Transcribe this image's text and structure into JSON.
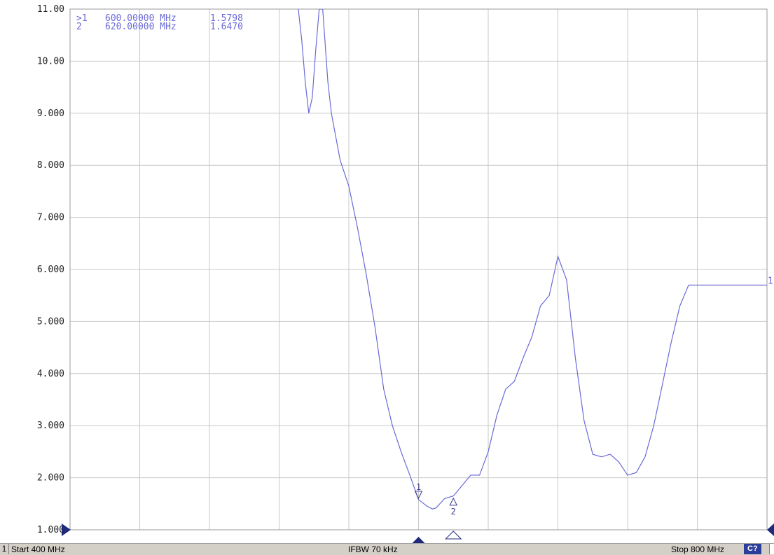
{
  "chart_data": {
    "type": "line",
    "trace_color": "#6a6ad8",
    "grid_color": "#c8c8c8",
    "x_unit": "MHz",
    "xlim": [
      400,
      800
    ],
    "ylim": [
      1.0,
      11.0
    ],
    "y_ticks": [
      "11.00",
      "10.00",
      "9.000",
      "8.000",
      "7.000",
      "6.000",
      "5.000",
      "4.000",
      "3.000",
      "2.000",
      "1.000"
    ],
    "grid": true,
    "series": [
      {
        "trace_number": "1",
        "x": [
          531,
          533,
          535,
          537,
          539,
          541,
          543,
          545,
          548,
          550,
          555,
          560,
          565,
          570,
          575,
          580,
          585,
          590,
          595,
          600,
          605,
          608,
          610,
          615,
          620,
          625,
          630,
          635,
          640,
          645,
          650,
          655,
          660,
          665,
          670,
          675,
          680,
          685,
          690,
          695,
          700,
          705,
          710,
          715,
          720,
          725,
          730,
          735,
          740,
          745,
          750,
          755,
          760,
          765,
          770,
          775,
          780,
          785,
          790,
          795,
          800
        ],
        "y": [
          11.0,
          10.4,
          9.6,
          9.0,
          9.3,
          10.2,
          11.0,
          11.0,
          9.6,
          9.0,
          8.1,
          7.6,
          6.8,
          5.9,
          4.9,
          3.7,
          3.0,
          2.5,
          2.05,
          1.58,
          1.45,
          1.4,
          1.42,
          1.6,
          1.65,
          1.85,
          2.05,
          2.05,
          2.5,
          3.2,
          3.7,
          3.85,
          4.3,
          4.7,
          5.3,
          5.5,
          6.25,
          5.8,
          4.3,
          3.1,
          2.45,
          2.4,
          2.45,
          2.3,
          2.05,
          2.1,
          2.4,
          3.0,
          3.8,
          4.6,
          5.3,
          5.7,
          5.7,
          5.7,
          5.7,
          5.7,
          5.7,
          5.7,
          5.7,
          5.7,
          5.7
        ]
      }
    ],
    "markers": [
      {
        "id": "1",
        "active": true,
        "label": ">1",
        "freq_text": "600.00000 MHz",
        "value_text": "1.5798",
        "x": 600,
        "y": 1.5798
      },
      {
        "id": "2",
        "active": false,
        "label": "2",
        "freq_text": "620.00000 MHz",
        "value_text": "1.6470",
        "x": 620,
        "y": 1.647
      }
    ]
  },
  "statusbar": {
    "channel": "1",
    "start": "Start 400 MHz",
    "ifbw": "IFBW 70 kHz",
    "stop": "Stop 800 MHz",
    "cal_badge": "C?"
  }
}
